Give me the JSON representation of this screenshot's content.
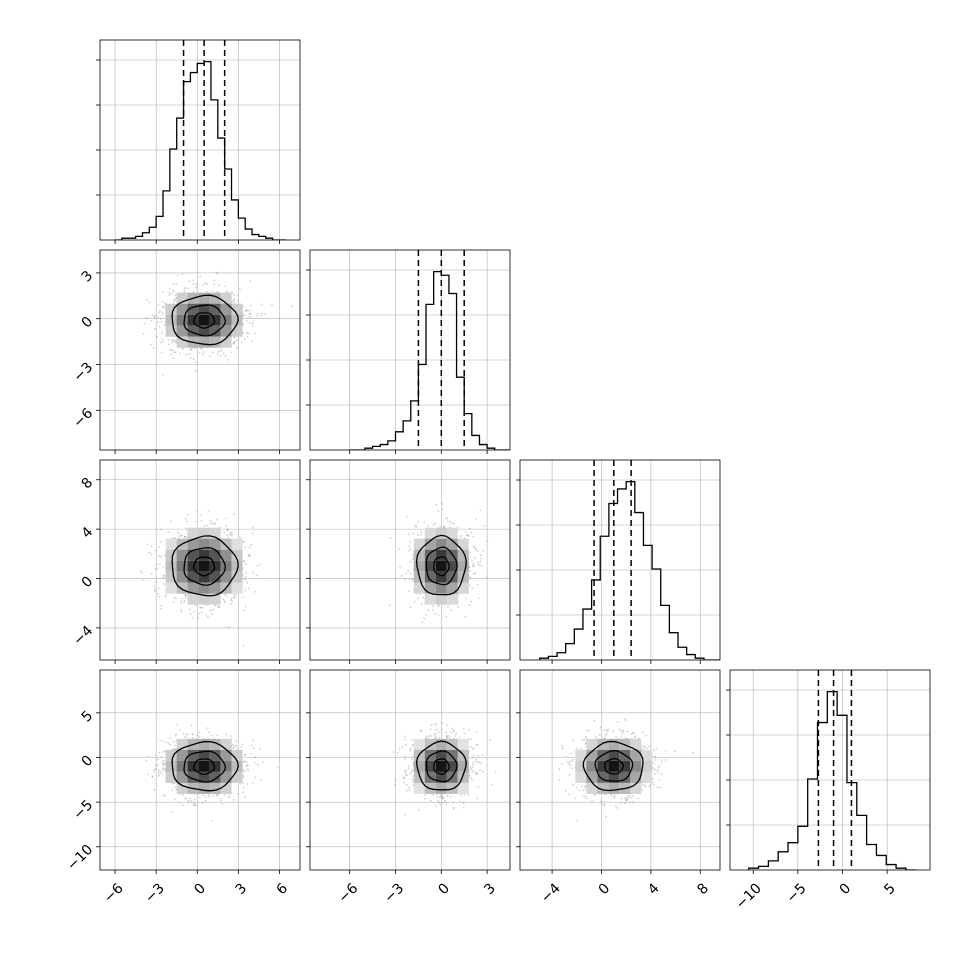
{
  "chart_data": {
    "type": "corner",
    "grid": true,
    "parameters": 4,
    "ticks": [
      {
        "values": [
          -6,
          -3,
          0,
          3,
          6
        ],
        "labels": [
          "−6",
          "−3",
          "0",
          "3",
          "6"
        ],
        "range": [
          -7.1,
          7.5
        ]
      },
      {
        "values": [
          -6,
          -3,
          0,
          3
        ],
        "labels": [
          "−6",
          "−3",
          "0",
          "3"
        ],
        "range": [
          -8.6,
          4.5
        ]
      },
      {
        "values": [
          -4,
          0,
          4,
          8
        ],
        "labels": [
          "−4",
          "0",
          "4",
          "8"
        ],
        "range": [
          -6.6,
          9.6
        ]
      },
      {
        "values": [
          -10,
          -5,
          0,
          5
        ],
        "labels": [
          "−10",
          "−5",
          "0",
          "5"
        ],
        "range": [
          -12.6,
          9.8
        ]
      }
    ],
    "marginals": [
      {
        "param": 0,
        "quantiles": [
          -1.0,
          0.5,
          2.0
        ],
        "bin_start": -6.0,
        "bin_width": 0.5,
        "density": [
          0,
          0.01,
          0.01,
          0.02,
          0.04,
          0.07,
          0.13,
          0.27,
          0.5,
          0.67,
          0.87,
          0.92,
          0.97,
          0.98,
          0.77,
          0.56,
          0.39,
          0.22,
          0.12,
          0.06,
          0.03,
          0.02,
          0.01,
          0,
          0
        ]
      },
      {
        "param": 1,
        "quantiles": [
          -1.5,
          0.0,
          1.5
        ],
        "bin_start": -6.0,
        "bin_width": 0.5,
        "density": [
          0,
          0,
          0.01,
          0.02,
          0.03,
          0.05,
          0.1,
          0.16,
          0.27,
          0.47,
          0.8,
          0.98,
          0.96,
          0.86,
          0.4,
          0.2,
          0.08,
          0.03,
          0.01,
          0,
          0
        ]
      },
      {
        "param": 2,
        "quantiles": [
          -0.6,
          1.0,
          2.4
        ],
        "bin_start": -5.0,
        "bin_width": 0.7,
        "density": [
          0.01,
          0.02,
          0.04,
          0.09,
          0.17,
          0.28,
          0.44,
          0.68,
          0.86,
          0.94,
          0.98,
          0.81,
          0.63,
          0.5,
          0.3,
          0.15,
          0.07,
          0.03,
          0.01,
          0,
          0
        ]
      },
      {
        "param": 3,
        "quantiles": [
          -2.7,
          -1.0,
          1.0
        ],
        "bin_start": -10.5,
        "bin_width": 1.1,
        "density": [
          0.01,
          0.02,
          0.05,
          0.1,
          0.15,
          0.24,
          0.5,
          0.81,
          0.98,
          0.85,
          0.48,
          0.3,
          0.14,
          0.08,
          0.03,
          0.01,
          0
        ]
      }
    ],
    "joints": [
      {
        "x": 0,
        "y": 1,
        "mean": [
          0.5,
          -0.1
        ],
        "sd": [
          1.5,
          1.0
        ]
      },
      {
        "x": 0,
        "y": 2,
        "mean": [
          0.5,
          1.0
        ],
        "sd": [
          1.5,
          1.5
        ]
      },
      {
        "x": 1,
        "y": 2,
        "mean": [
          0.0,
          1.0
        ],
        "sd": [
          1.0,
          1.5
        ]
      },
      {
        "x": 0,
        "y": 3,
        "mean": [
          0.5,
          -1.0
        ],
        "sd": [
          1.5,
          1.7
        ]
      },
      {
        "x": 1,
        "y": 3,
        "mean": [
          0.0,
          -1.0
        ],
        "sd": [
          1.0,
          1.7
        ]
      },
      {
        "x": 2,
        "y": 3,
        "mean": [
          1.0,
          -1.0
        ],
        "sd": [
          1.5,
          1.7
        ]
      }
    ],
    "colors": {
      "histogram": "#000000",
      "quantile_line": "#000000",
      "grid": "#b0b0b0",
      "points": "#9a9a9a",
      "contour": "#000000"
    }
  }
}
